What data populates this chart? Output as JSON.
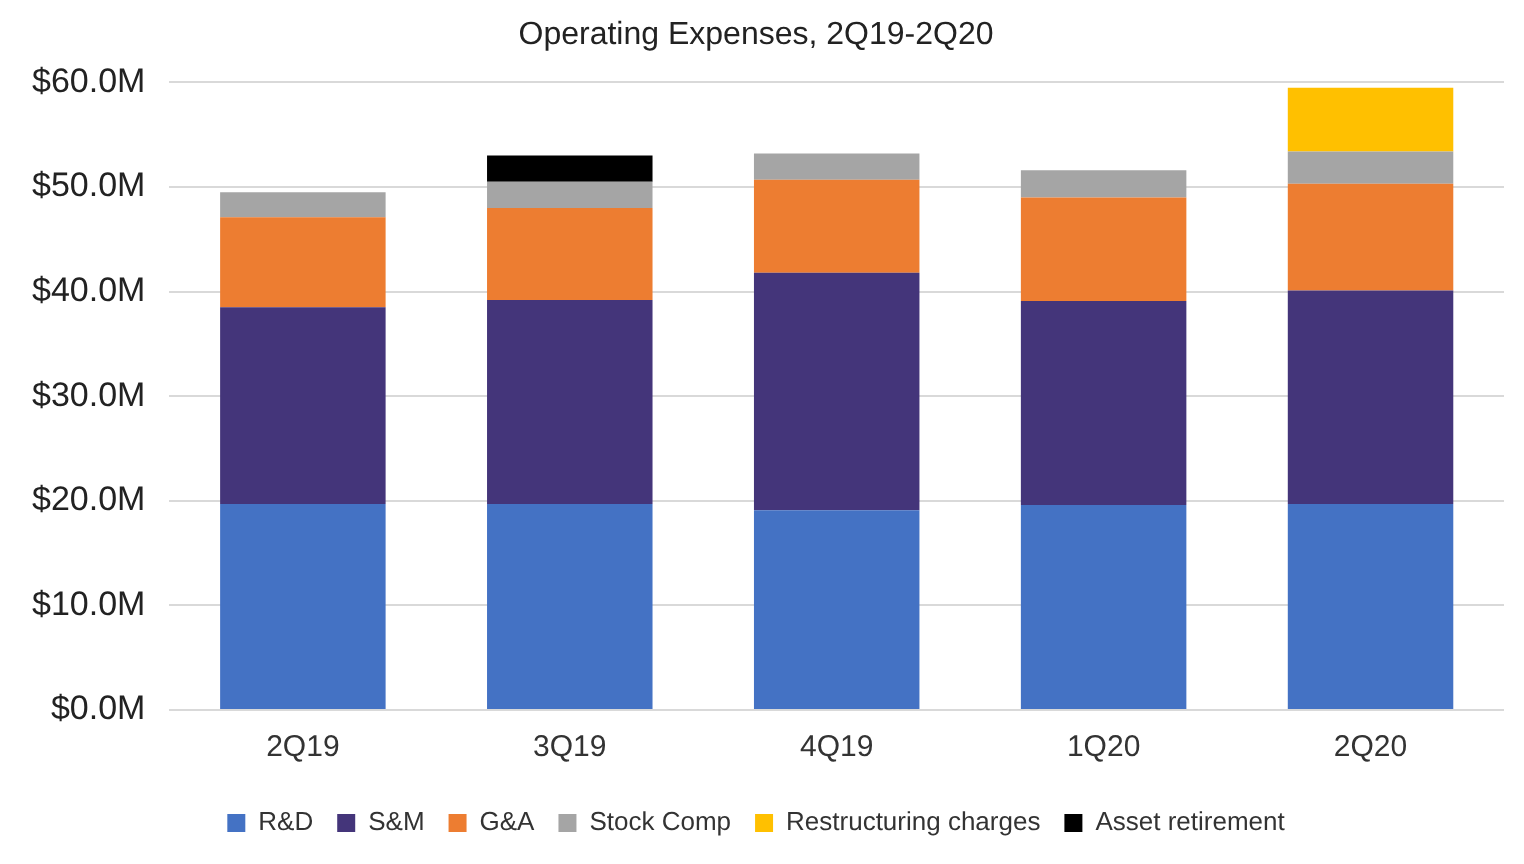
{
  "chart_data": {
    "type": "bar",
    "title": "Operating Expenses, 2Q19-2Q20",
    "stacked": true,
    "categories": [
      "2Q19",
      "3Q19",
      "4Q19",
      "1Q20",
      "2Q20"
    ],
    "series": [
      {
        "name": "R&D",
        "color": "#4472c4",
        "values": [
          19.7,
          19.7,
          19.1,
          19.6,
          19.7
        ]
      },
      {
        "name": "S&M",
        "color": "#44357a",
        "values": [
          18.8,
          19.5,
          22.7,
          19.5,
          20.4
        ]
      },
      {
        "name": "G&A",
        "color": "#ed7d31",
        "values": [
          8.6,
          8.8,
          8.9,
          9.9,
          10.2
        ]
      },
      {
        "name": "Stock Comp",
        "color": "#a5a5a5",
        "values": [
          2.4,
          2.5,
          2.5,
          2.6,
          3.1
        ]
      },
      {
        "name": "Restructuring charges",
        "color": "#ffc000",
        "values": [
          null,
          null,
          null,
          null,
          6.1
        ]
      },
      {
        "name": "Asset retirement",
        "color": "#000000",
        "values": [
          null,
          2.5,
          null,
          null,
          null
        ]
      }
    ],
    "ylim": [
      0,
      60
    ],
    "yticks": [
      {
        "value": 0,
        "label": "$0.0M"
      },
      {
        "value": 10,
        "label": "$10.0M"
      },
      {
        "value": 20,
        "label": "$20.0M"
      },
      {
        "value": 30,
        "label": "$30.0M"
      },
      {
        "value": 40,
        "label": "$40.0M"
      },
      {
        "value": 50,
        "label": "$50.0M"
      },
      {
        "value": 60,
        "label": "$60.0M"
      }
    ],
    "grid": "y",
    "legend": "bottom"
  }
}
